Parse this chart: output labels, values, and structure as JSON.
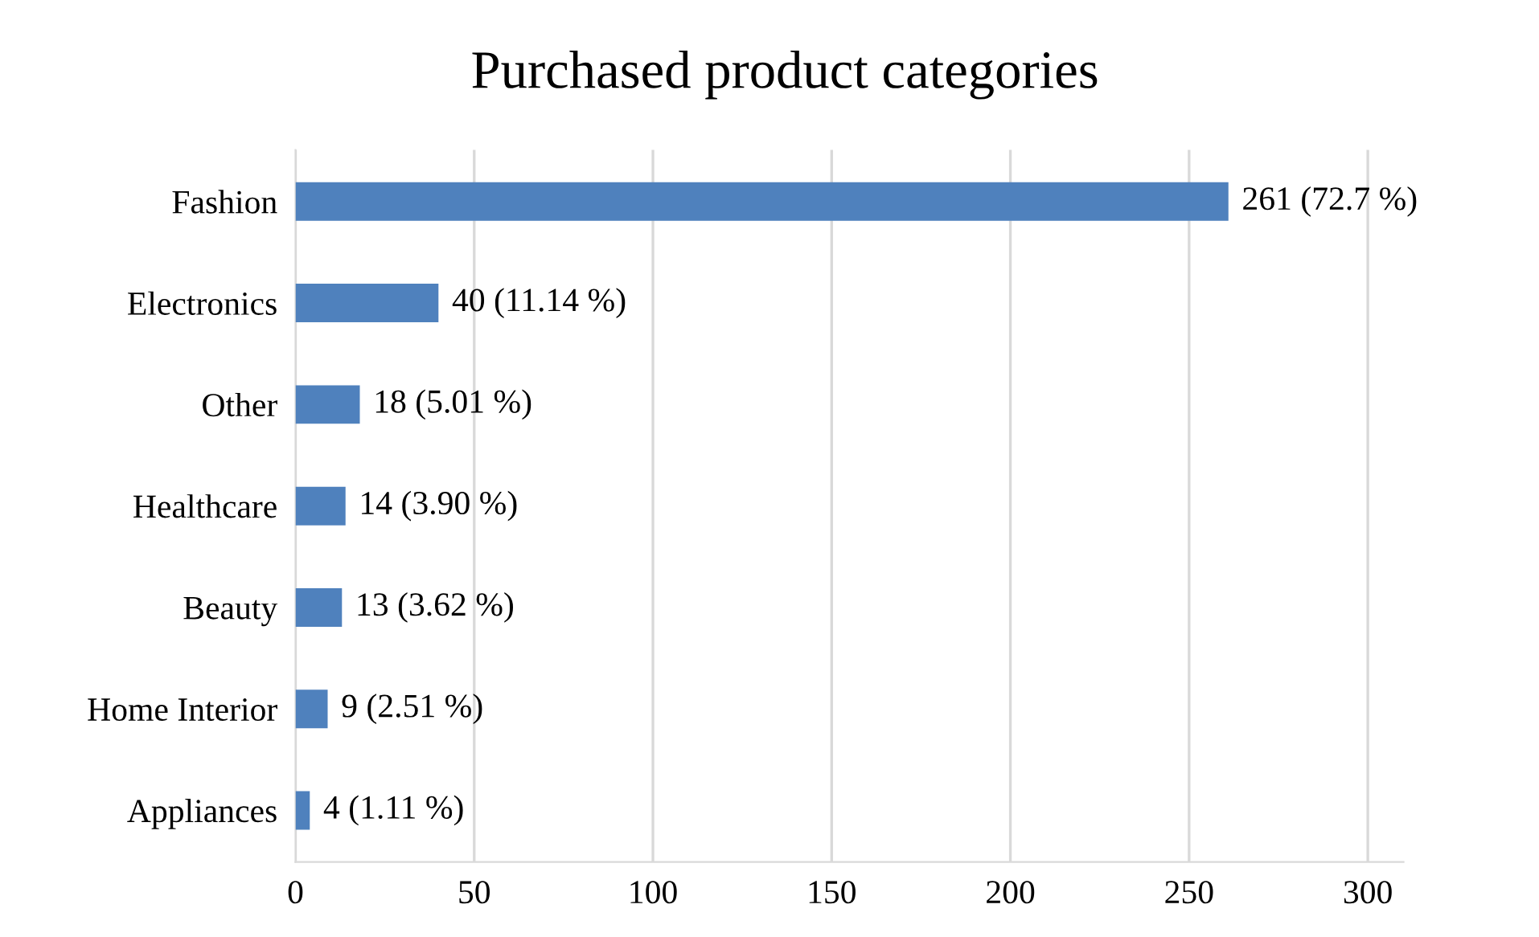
{
  "chart_data": {
    "type": "bar",
    "orientation": "horizontal",
    "title": "Purchased product categories",
    "categories": [
      "Fashion",
      "Electronics",
      "Other",
      "Healthcare",
      "Beauty",
      "Home Interior",
      "Appliances"
    ],
    "values": [
      261,
      40,
      18,
      14,
      13,
      9,
      4
    ],
    "value_labels": [
      "261 (72.7 %)",
      "40 (11.14 %)",
      "18 (5.01 %)",
      "14 (3.90 %)",
      "13 (3.62 %)",
      "9 (2.51 %)",
      "4 (1.11 %)"
    ],
    "color": "#4f81bd",
    "xlim": [
      0,
      310
    ],
    "xticks": [
      0,
      50,
      100,
      150,
      200,
      250,
      300
    ],
    "grid": "x"
  }
}
